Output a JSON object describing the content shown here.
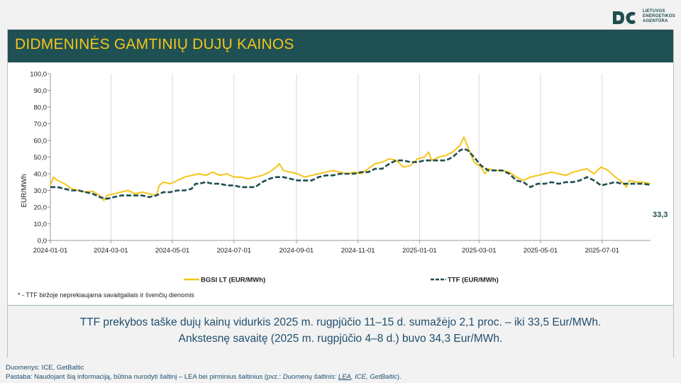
{
  "logo": {
    "line1": "LIETUVOS",
    "line2": "ENERGETIKOS",
    "line3": "AGENTŪRA",
    "brand_color": "#1f4e4f"
  },
  "title": "DIDMENINĖS GAMTINIŲ DUJŲ KAINOS",
  "footnote": "* - TTF biržoje neprekiaujama savaitgaliais ir švenčių dienomis",
  "info": {
    "line1": "TTF prekybos taške dujų kainų vidurkis 2025 m. rugpjūčio 11–15 d. sumažėjo 2,1 proc. – iki 33,5 Eur/MWh.",
    "line2": "Ankstesnę savaitę (2025 m. rugpjūčio 4–8 d.) buvo 34,3 Eur/MWh."
  },
  "sources": {
    "line1": "Duomenys: ICE, GetBaltic",
    "line2_a": "Pastaba: Naudojant šią informaciją, būtina nurodyti šaltinį – LEA bei pirminius šaltinius (pvz.: ",
    "line2_b": "Duomenų šaltinis: ",
    "line2_link": "LEA",
    "line2_c": ", ICE, GetBaltic",
    "line2_d": ")."
  },
  "colors": {
    "title_bg": "#1f5054",
    "title_text": "#f5c518",
    "bgsi": "#f5c518",
    "ttf": "#1f4e4f"
  },
  "chart_data": {
    "type": "line",
    "ylabel": "EUR/MWh",
    "ylim": [
      0,
      100
    ],
    "yticks": [
      "0,0",
      "10,0",
      "20,0",
      "30,0",
      "40,0",
      "50,0",
      "60,0",
      "70,0",
      "80,0",
      "90,0",
      "100,0"
    ],
    "x_range": [
      "2024-01-01",
      "2025-08-18"
    ],
    "xticks": [
      "2024-01-01",
      "2024-03-01",
      "2024-05-01",
      "2024-07-01",
      "2024-09-01",
      "2024-11-01",
      "2025-01-01",
      "2025-03-01",
      "2025-05-01",
      "2025-07-01"
    ],
    "grid": "vertical",
    "legend": "bottom",
    "end_label": "33,3",
    "series": [
      {
        "name": "BGSI LT (EUR/MWh)",
        "color": "#f5c518",
        "style": "solid",
        "points": [
          [
            "2024-01-01",
            33
          ],
          [
            "2024-01-04",
            38
          ],
          [
            "2024-01-08",
            36
          ],
          [
            "2024-01-15",
            34
          ],
          [
            "2024-01-22",
            31
          ],
          [
            "2024-01-29",
            30
          ],
          [
            "2024-02-05",
            29
          ],
          [
            "2024-02-12",
            29.5
          ],
          [
            "2024-02-19",
            27
          ],
          [
            "2024-02-23",
            24
          ],
          [
            "2024-02-26",
            27
          ],
          [
            "2024-03-04",
            28
          ],
          [
            "2024-03-11",
            29
          ],
          [
            "2024-03-18",
            30
          ],
          [
            "2024-03-25",
            28
          ],
          [
            "2024-04-01",
            29
          ],
          [
            "2024-04-08",
            28
          ],
          [
            "2024-04-15",
            27
          ],
          [
            "2024-04-18",
            33
          ],
          [
            "2024-04-22",
            35
          ],
          [
            "2024-04-29",
            34
          ],
          [
            "2024-05-06",
            36
          ],
          [
            "2024-05-13",
            38
          ],
          [
            "2024-05-20",
            39
          ],
          [
            "2024-05-27",
            40
          ],
          [
            "2024-06-03",
            39
          ],
          [
            "2024-06-10",
            41
          ],
          [
            "2024-06-17",
            39
          ],
          [
            "2024-06-24",
            40
          ],
          [
            "2024-07-01",
            38
          ],
          [
            "2024-07-08",
            38
          ],
          [
            "2024-07-15",
            37
          ],
          [
            "2024-07-22",
            38
          ],
          [
            "2024-07-29",
            39
          ],
          [
            "2024-08-05",
            41
          ],
          [
            "2024-08-12",
            44
          ],
          [
            "2024-08-15",
            46
          ],
          [
            "2024-08-19",
            42
          ],
          [
            "2024-08-26",
            41
          ],
          [
            "2024-09-02",
            40
          ],
          [
            "2024-09-09",
            38
          ],
          [
            "2024-09-16",
            39
          ],
          [
            "2024-09-23",
            40
          ],
          [
            "2024-09-30",
            41
          ],
          [
            "2024-10-07",
            42
          ],
          [
            "2024-10-14",
            41
          ],
          [
            "2024-10-21",
            40
          ],
          [
            "2024-10-28",
            41
          ],
          [
            "2024-11-04",
            40
          ],
          [
            "2024-11-11",
            43
          ],
          [
            "2024-11-18",
            46
          ],
          [
            "2024-11-25",
            47
          ],
          [
            "2024-12-02",
            49
          ],
          [
            "2024-12-09",
            48
          ],
          [
            "2024-12-16",
            44
          ],
          [
            "2024-12-23",
            45
          ],
          [
            "2024-12-30",
            49
          ],
          [
            "2025-01-06",
            50
          ],
          [
            "2025-01-10",
            53
          ],
          [
            "2025-01-13",
            48
          ],
          [
            "2025-01-20",
            50
          ],
          [
            "2025-01-27",
            51
          ],
          [
            "2025-02-03",
            53
          ],
          [
            "2025-02-10",
            57
          ],
          [
            "2025-02-14",
            62
          ],
          [
            "2025-02-18",
            56
          ],
          [
            "2025-02-24",
            47
          ],
          [
            "2025-03-03",
            44
          ],
          [
            "2025-03-07",
            40
          ],
          [
            "2025-03-10",
            43
          ],
          [
            "2025-03-17",
            42
          ],
          [
            "2025-03-24",
            42
          ],
          [
            "2025-03-31",
            41
          ],
          [
            "2025-04-07",
            38
          ],
          [
            "2025-04-14",
            36
          ],
          [
            "2025-04-21",
            38
          ],
          [
            "2025-04-28",
            39
          ],
          [
            "2025-05-05",
            40
          ],
          [
            "2025-05-12",
            41
          ],
          [
            "2025-05-19",
            40
          ],
          [
            "2025-05-26",
            39
          ],
          [
            "2025-06-02",
            41
          ],
          [
            "2025-06-09",
            42
          ],
          [
            "2025-06-16",
            43
          ],
          [
            "2025-06-23",
            40
          ],
          [
            "2025-06-30",
            44
          ],
          [
            "2025-07-07",
            42
          ],
          [
            "2025-07-14",
            38
          ],
          [
            "2025-07-21",
            35
          ],
          [
            "2025-07-25",
            32
          ],
          [
            "2025-07-28",
            36
          ],
          [
            "2025-08-04",
            35
          ],
          [
            "2025-08-11",
            35
          ],
          [
            "2025-08-18",
            34
          ]
        ]
      },
      {
        "name": "TTF (EUR/MWh)",
        "color": "#1f4e4f",
        "style": "dashed",
        "points": [
          [
            "2024-01-01",
            32
          ],
          [
            "2024-01-08",
            32
          ],
          [
            "2024-01-15",
            31
          ],
          [
            "2024-01-22",
            30
          ],
          [
            "2024-01-29",
            30
          ],
          [
            "2024-02-05",
            29
          ],
          [
            "2024-02-12",
            28
          ],
          [
            "2024-02-19",
            26
          ],
          [
            "2024-02-26",
            25
          ],
          [
            "2024-03-04",
            26
          ],
          [
            "2024-03-11",
            27
          ],
          [
            "2024-03-18",
            27
          ],
          [
            "2024-03-25",
            27
          ],
          [
            "2024-04-01",
            27
          ],
          [
            "2024-04-08",
            26
          ],
          [
            "2024-04-15",
            27
          ],
          [
            "2024-04-22",
            29
          ],
          [
            "2024-04-29",
            29
          ],
          [
            "2024-05-06",
            30
          ],
          [
            "2024-05-13",
            30
          ],
          [
            "2024-05-20",
            31
          ],
          [
            "2024-05-24",
            34
          ],
          [
            "2024-05-27",
            34
          ],
          [
            "2024-06-03",
            35
          ],
          [
            "2024-06-10",
            34
          ],
          [
            "2024-06-17",
            34
          ],
          [
            "2024-06-24",
            33
          ],
          [
            "2024-07-01",
            33
          ],
          [
            "2024-07-08",
            32
          ],
          [
            "2024-07-15",
            32
          ],
          [
            "2024-07-22",
            32
          ],
          [
            "2024-07-29",
            35
          ],
          [
            "2024-08-05",
            37
          ],
          [
            "2024-08-12",
            38
          ],
          [
            "2024-08-19",
            38
          ],
          [
            "2024-08-26",
            37
          ],
          [
            "2024-09-02",
            36
          ],
          [
            "2024-09-09",
            36
          ],
          [
            "2024-09-16",
            36
          ],
          [
            "2024-09-23",
            38
          ],
          [
            "2024-09-30",
            39
          ],
          [
            "2024-10-07",
            39
          ],
          [
            "2024-10-14",
            40
          ],
          [
            "2024-10-21",
            40
          ],
          [
            "2024-10-28",
            40
          ],
          [
            "2024-11-04",
            41
          ],
          [
            "2024-11-11",
            41
          ],
          [
            "2024-11-18",
            43
          ],
          [
            "2024-11-25",
            43
          ],
          [
            "2024-12-02",
            46
          ],
          [
            "2024-12-09",
            48
          ],
          [
            "2024-12-16",
            48
          ],
          [
            "2024-12-23",
            47
          ],
          [
            "2024-12-30",
            47
          ],
          [
            "2025-01-06",
            48
          ],
          [
            "2025-01-13",
            48
          ],
          [
            "2025-01-20",
            48
          ],
          [
            "2025-01-27",
            48
          ],
          [
            "2025-02-03",
            50
          ],
          [
            "2025-02-10",
            54
          ],
          [
            "2025-02-14",
            55
          ],
          [
            "2025-02-18",
            54
          ],
          [
            "2025-02-24",
            50
          ],
          [
            "2025-03-03",
            45
          ],
          [
            "2025-03-10",
            42
          ],
          [
            "2025-03-17",
            42
          ],
          [
            "2025-03-24",
            42
          ],
          [
            "2025-03-31",
            40
          ],
          [
            "2025-04-07",
            36
          ],
          [
            "2025-04-14",
            35
          ],
          [
            "2025-04-21",
            32
          ],
          [
            "2025-04-28",
            34
          ],
          [
            "2025-05-05",
            34
          ],
          [
            "2025-05-12",
            35
          ],
          [
            "2025-05-19",
            34
          ],
          [
            "2025-05-26",
            35
          ],
          [
            "2025-06-02",
            35
          ],
          [
            "2025-06-09",
            36
          ],
          [
            "2025-06-16",
            38
          ],
          [
            "2025-06-23",
            36
          ],
          [
            "2025-06-30",
            33
          ],
          [
            "2025-07-07",
            34
          ],
          [
            "2025-07-14",
            35
          ],
          [
            "2025-07-21",
            34
          ],
          [
            "2025-07-28",
            34
          ],
          [
            "2025-08-04",
            34
          ],
          [
            "2025-08-11",
            34
          ],
          [
            "2025-08-18",
            33.3
          ]
        ]
      }
    ]
  }
}
